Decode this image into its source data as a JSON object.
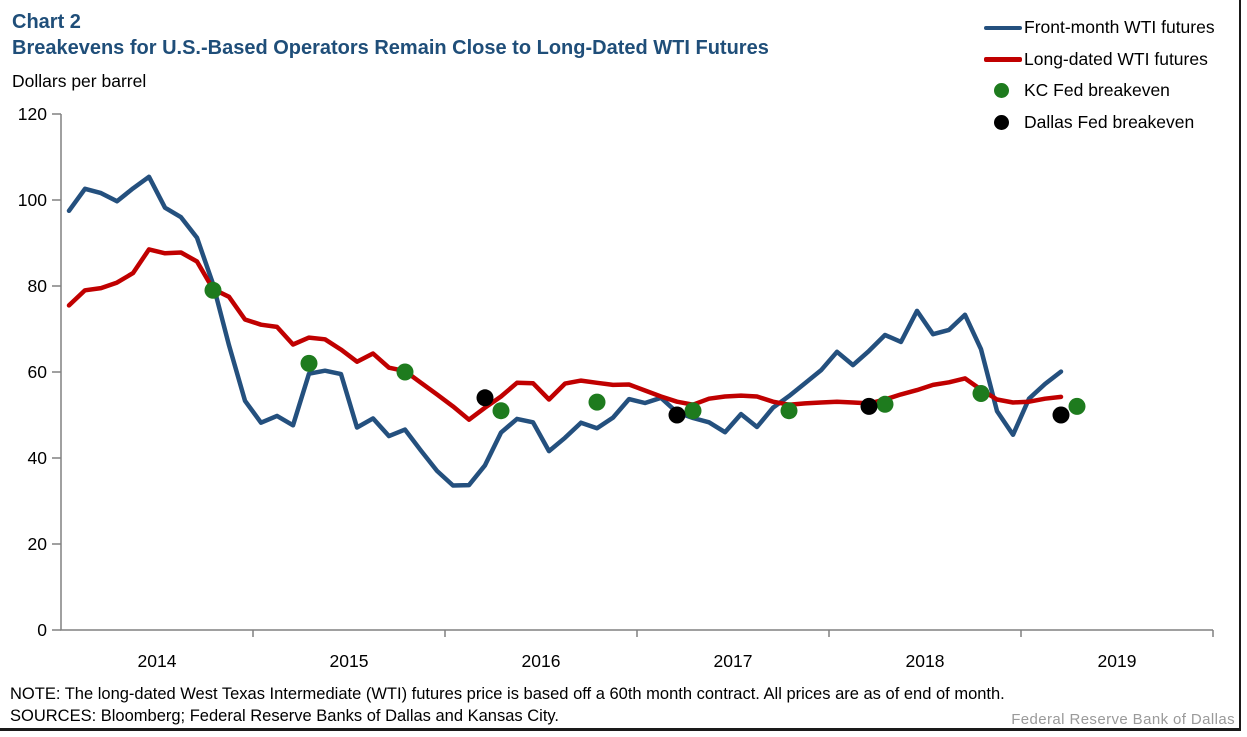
{
  "header": {
    "chart_label": "Chart 2",
    "title": "Breakevens for U.S.-Based Operators Remain Close to Long-Dated WTI Futures",
    "units_label": "Dollars per barrel"
  },
  "legend": {
    "items": [
      {
        "label": "Front-month WTI futures",
        "swatch": "line",
        "color": "#24507e"
      },
      {
        "label": "Long-dated WTI futures",
        "swatch": "line",
        "color": "#c00000"
      },
      {
        "label": "KC Fed breakeven",
        "swatch": "dot",
        "color": "#1e7b1e"
      },
      {
        "label": "Dallas Fed breakeven",
        "swatch": "dot",
        "color": "#000000"
      }
    ]
  },
  "footer": {
    "note": "NOTE: The long-dated West Texas Intermediate (WTI) futures price is based off a 60th month contract. All prices are as of end of month.",
    "sources": "SOURCES: Bloomberg; Federal Reserve Banks of Dallas and Kansas City.",
    "watermark": "Federal Reserve Bank of Dallas"
  },
  "chart_data": {
    "type": "line",
    "title": "Breakevens for U.S.-Based Operators Remain Close to Long-Dated WTI Futures",
    "ylabel": "Dollars per barrel",
    "ylim": [
      0,
      120
    ],
    "y_ticks": [
      0,
      20,
      40,
      60,
      80,
      100,
      120
    ],
    "x_tick_labels": [
      "2014",
      "2015",
      "2016",
      "2017",
      "2018",
      "2019"
    ],
    "x_start_month": "2014-01",
    "frequency": "monthly",
    "grid": false,
    "legend_position": "top-right",
    "axis_color": "#808080",
    "series": [
      {
        "name": "Front-month WTI futures",
        "type": "line",
        "color": "#24507e",
        "values": [
          97.5,
          102.6,
          101.6,
          99.7,
          102.7,
          105.4,
          98.2,
          96.0,
          91.2,
          80.5,
          66.2,
          53.3,
          48.2,
          49.8,
          47.6,
          59.6,
          60.3,
          59.5,
          47.1,
          49.2,
          45.1,
          46.6,
          41.7,
          37.0,
          33.6,
          33.7,
          38.3,
          45.9,
          49.1,
          48.3,
          41.6,
          44.7,
          48.2,
          46.9,
          49.4,
          53.7,
          52.8,
          54.0,
          50.6,
          49.3,
          48.3,
          46.0,
          50.2,
          47.2,
          51.7,
          54.4,
          57.4,
          60.4,
          64.7,
          61.6,
          64.9,
          68.6,
          67.0,
          74.2,
          68.8,
          69.8,
          73.3,
          65.3,
          50.9,
          45.4,
          53.8,
          57.2,
          60.1
        ]
      },
      {
        "name": "Long-dated WTI futures",
        "type": "line",
        "color": "#c00000",
        "values": [
          75.5,
          79.0,
          79.5,
          80.8,
          83.0,
          88.5,
          87.6,
          87.8,
          85.7,
          79.3,
          77.5,
          72.2,
          71.0,
          70.5,
          66.4,
          68.0,
          67.6,
          65.2,
          62.4,
          64.3,
          61.0,
          60.2,
          57.5,
          54.8,
          52.0,
          48.9,
          51.7,
          54.3,
          57.5,
          57.4,
          53.6,
          57.3,
          58.0,
          57.5,
          57.0,
          57.1,
          55.7,
          54.3,
          53.1,
          52.4,
          53.8,
          54.3,
          54.5,
          54.3,
          53.1,
          52.4,
          52.7,
          52.9,
          53.1,
          52.9,
          52.7,
          53.6,
          54.8,
          55.8,
          57.0,
          57.6,
          58.5,
          55.9,
          53.6,
          52.9,
          53.1,
          53.8,
          54.2
        ]
      },
      {
        "name": "KC Fed breakeven",
        "type": "scatter",
        "color": "#1e7b1e",
        "points": [
          [
            "2014-10",
            79
          ],
          [
            "2015-04",
            62
          ],
          [
            "2015-10",
            60
          ],
          [
            "2016-04",
            51
          ],
          [
            "2016-10",
            53
          ],
          [
            "2017-04",
            51
          ],
          [
            "2017-10",
            51
          ],
          [
            "2018-04",
            52.5
          ],
          [
            "2018-10",
            55
          ],
          [
            "2019-04",
            52
          ]
        ]
      },
      {
        "name": "Dallas Fed breakeven",
        "type": "scatter",
        "color": "#000000",
        "points": [
          [
            "2016-03",
            54
          ],
          [
            "2017-03",
            50
          ],
          [
            "2018-03",
            52
          ],
          [
            "2019-03",
            50
          ]
        ]
      }
    ]
  }
}
